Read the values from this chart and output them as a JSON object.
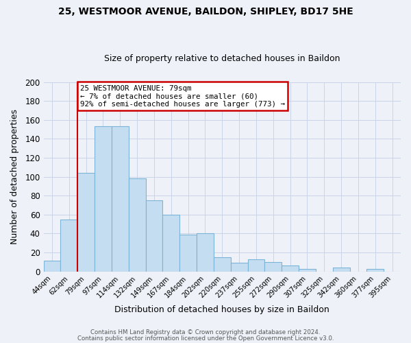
{
  "title1": "25, WESTMOOR AVENUE, BAILDON, SHIPLEY, BD17 5HE",
  "title2": "Size of property relative to detached houses in Baildon",
  "xlabel": "Distribution of detached houses by size in Baildon",
  "ylabel": "Number of detached properties",
  "footer1": "Contains HM Land Registry data © Crown copyright and database right 2024.",
  "footer2": "Contains public sector information licensed under the Open Government Licence v3.0.",
  "bins": [
    "44sqm",
    "62sqm",
    "79sqm",
    "97sqm",
    "114sqm",
    "132sqm",
    "149sqm",
    "167sqm",
    "184sqm",
    "202sqm",
    "220sqm",
    "237sqm",
    "255sqm",
    "272sqm",
    "290sqm",
    "307sqm",
    "325sqm",
    "342sqm",
    "360sqm",
    "377sqm",
    "395sqm"
  ],
  "values": [
    11,
    55,
    104,
    153,
    153,
    98,
    75,
    60,
    39,
    40,
    15,
    9,
    13,
    10,
    6,
    3,
    0,
    4,
    0,
    3,
    0
  ],
  "bar_color": "#c5ddf0",
  "bar_edge_color": "#7bb4d8",
  "vline_x_index": 2,
  "vline_color": "#cc0000",
  "annotation_text": "25 WESTMOOR AVENUE: 79sqm\n← 7% of detached houses are smaller (60)\n92% of semi-detached houses are larger (773) →",
  "annotation_box_edge": "#cc0000",
  "annotation_box_face": "#ffffff",
  "ylim": [
    0,
    200
  ],
  "yticks": [
    0,
    20,
    40,
    60,
    80,
    100,
    120,
    140,
    160,
    180,
    200
  ],
  "grid_color": "#c8d4e8",
  "bg_color": "#eef2f8"
}
